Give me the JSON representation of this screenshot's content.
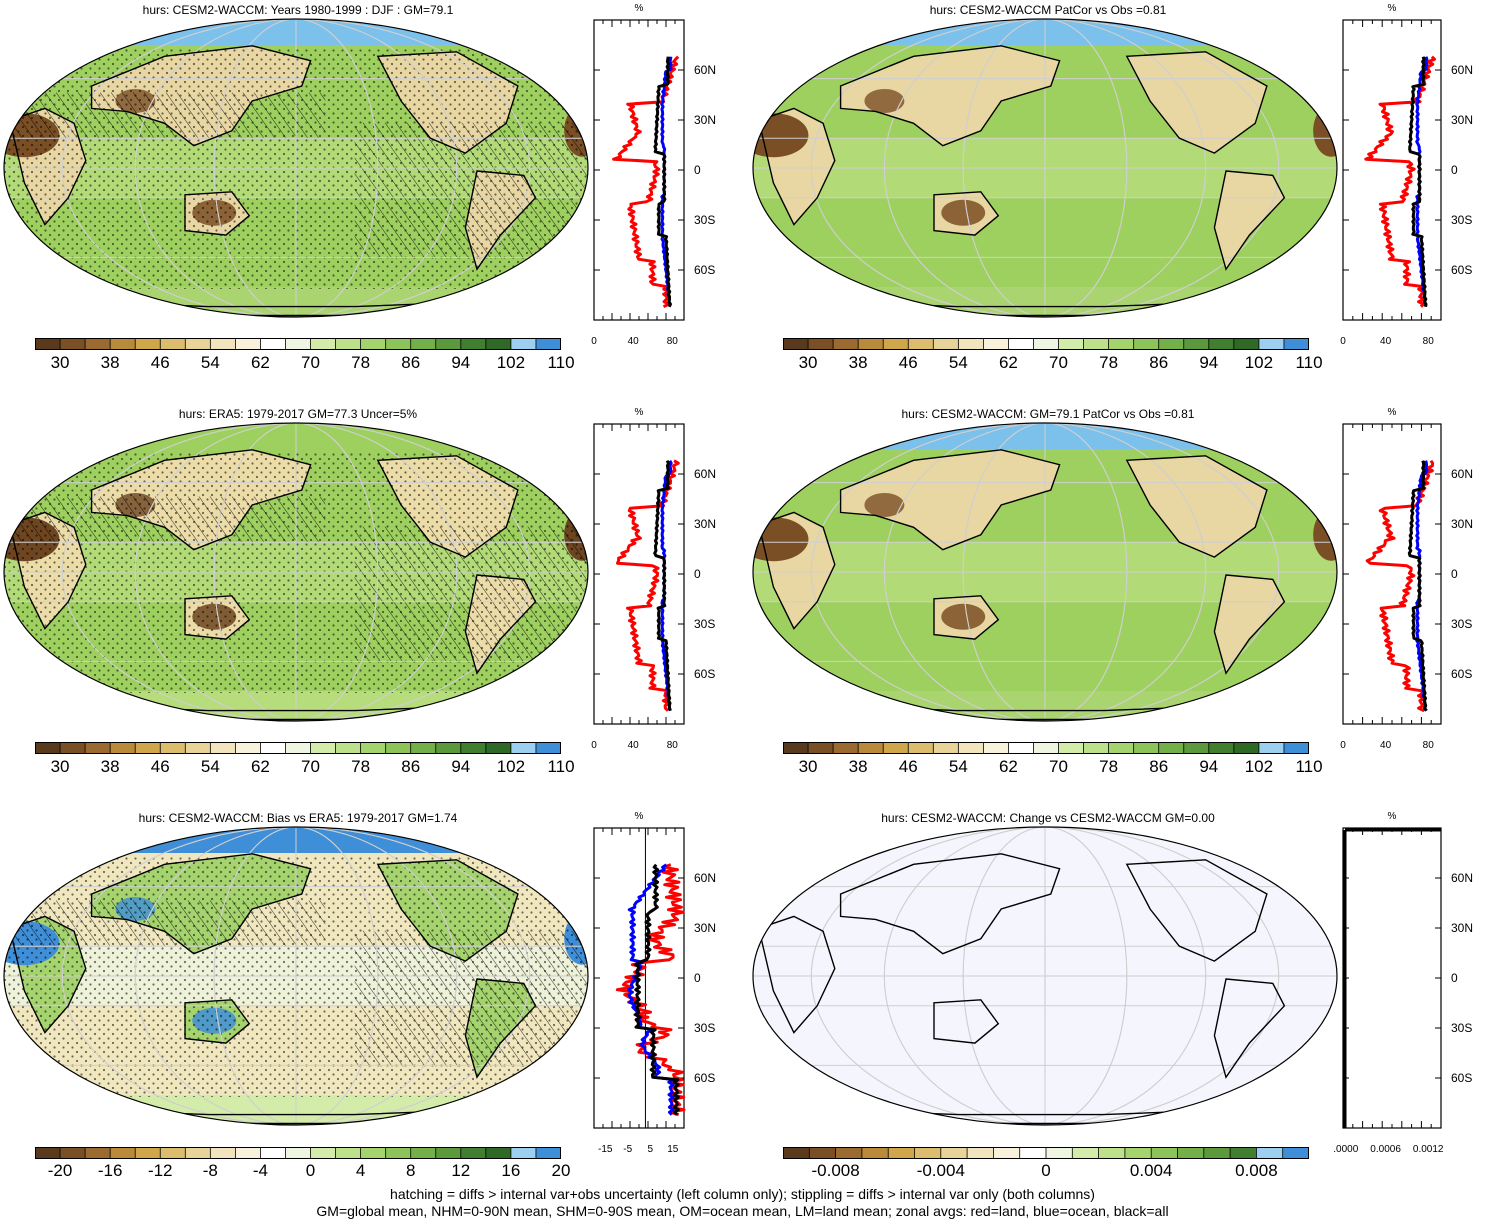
{
  "panels": [
    {
      "title": "hurs: CESM2-WACCM: Years 1980-1999 : DJF : GM=79.1",
      "kind": "mean",
      "hatch": true,
      "stipple": true,
      "zonal_x_ticks": [
        "0",
        "40",
        "80"
      ]
    },
    {
      "title": "hurs: CESM2-WACCM PatCor vs Obs =0.81",
      "kind": "mean",
      "hatch": false,
      "stipple": false,
      "zonal_x_ticks": [
        "0",
        "40",
        "80"
      ]
    },
    {
      "title": "hurs: ERA5: 1979-2017 GM=77.3 Uncer=5%",
      "kind": "obs",
      "hatch": true,
      "stipple": true,
      "zonal_x_ticks": [
        "0",
        "40",
        "80"
      ]
    },
    {
      "title": "hurs: CESM2-WACCM: GM=79.1 PatCor vs Obs =0.81",
      "kind": "mean",
      "hatch": false,
      "stipple": false,
      "zonal_x_ticks": [
        "0",
        "40",
        "80"
      ]
    },
    {
      "title": "hurs: CESM2-WACCM: Bias vs ERA5: 1979-2017 GM=1.74",
      "kind": "bias",
      "hatch": true,
      "stipple": true,
      "zonal_x_ticks": [
        "-15",
        "-5",
        "5",
        "15"
      ]
    },
    {
      "title": "hurs: CESM2-WACCM: Change vs CESM2-WACCM GM=0.00",
      "kind": "change",
      "hatch": false,
      "stipple": false,
      "zonal_x_ticks": [
        "0.0000",
        "0.0006",
        "0.0012"
      ]
    }
  ],
  "zonal_unit": "%",
  "lat_ticks": [
    "60N",
    "30N",
    "0",
    "30S",
    "60S"
  ],
  "colorbars": {
    "abs_labels": [
      "30",
      "38",
      "46",
      "54",
      "62",
      "70",
      "78",
      "86",
      "94",
      "102",
      "110"
    ],
    "bias_labels": [
      "-20",
      "-16",
      "-12",
      "-8",
      "-4",
      "0",
      "4",
      "8",
      "12",
      "16",
      "20"
    ],
    "change_labels": [
      "-0.008",
      "-0.004",
      "0",
      "0.004",
      "0.008"
    ],
    "abs_colors": [
      "#5a3a1c",
      "#7a4f25",
      "#9a6a30",
      "#b88a3a",
      "#cfa64a",
      "#dcbd6e",
      "#e8d398",
      "#f2e4bc",
      "#f8f1dc",
      "#ffffff",
      "#eef5e0",
      "#d4ecaa",
      "#bde08a",
      "#a5d36e",
      "#8cc45a",
      "#73b04a",
      "#5a9a3c",
      "#3f7f2f",
      "#2e6a26",
      "#9dd0f0",
      "#3f8fd8"
    ],
    "change_colors": [
      "#5a3a1c",
      "#7a4f25",
      "#9a6a30",
      "#b88a3a",
      "#cfa64a",
      "#dcbd6e",
      "#e8d398",
      "#f2e4bc",
      "#f8f1dc",
      "#ffffff",
      "#eef5e0",
      "#d4ecaa",
      "#bde08a",
      "#a5d36e",
      "#8cc45a",
      "#73b04a",
      "#5a9a3c",
      "#3f7f2f",
      "#9dd0f0",
      "#3f8fd8"
    ]
  },
  "series_colors": {
    "land": "#ff0000",
    "ocean": "#0000ff",
    "all": "#000000"
  },
  "footer": {
    "line1": "hatching = diffs > internal var+obs uncertainty (left column only); stippling = diffs > internal var only (both columns)",
    "line2": "GM=global mean, NHM=0-90N mean, SHM=0-90S mean, OM=ocean mean, LM=land mean; zonal avgs: red=land, blue=ocean, black=all"
  }
}
